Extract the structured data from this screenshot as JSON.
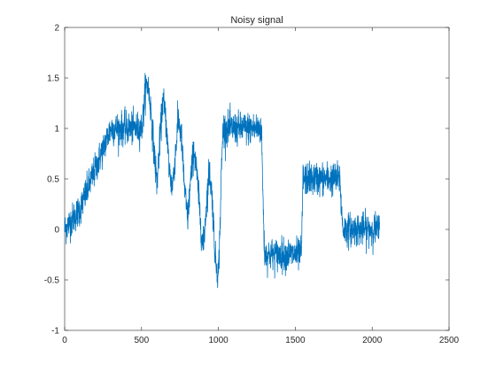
{
  "chart_data": {
    "type": "line",
    "title": "Noisy signal",
    "xlabel": "",
    "ylabel": "",
    "xlim": [
      0,
      2500
    ],
    "ylim": [
      -1,
      2
    ],
    "xticks": [
      0,
      500,
      1000,
      1500,
      2000,
      2500
    ],
    "yticks": [
      -1,
      -0.5,
      0,
      0.5,
      1,
      1.5,
      2
    ],
    "xtick_labels": [
      "0",
      "500",
      "1000",
      "1500",
      "2000",
      "2500"
    ],
    "ytick_labels": [
      "-1",
      "-0.5",
      "0",
      "0.5",
      "1",
      "1.5",
      "2"
    ],
    "grid": false,
    "line_color": "#0072BD",
    "series": [
      {
        "x": [
          0,
          50,
          100,
          150,
          200,
          250,
          300,
          350,
          400,
          450,
          500,
          510,
          525,
          540,
          560,
          580,
          600,
          620,
          640,
          660,
          680,
          700,
          720,
          740,
          760,
          780,
          800,
          820,
          840,
          860,
          880,
          900,
          920,
          940,
          960,
          980,
          1000,
          1010,
          1020,
          1030,
          1100,
          1200,
          1280,
          1290,
          1300,
          1400,
          1500,
          1540,
          1550,
          1600,
          1700,
          1790,
          1800,
          1810,
          1900,
          2000,
          2048
        ],
        "y": [
          0,
          0.1,
          0.2,
          0.4,
          0.6,
          0.8,
          1.0,
          1.0,
          1.0,
          1.0,
          1.0,
          1.1,
          1.4,
          1.45,
          1.2,
          0.8,
          0.45,
          0.9,
          1.3,
          1.05,
          0.6,
          0.4,
          0.75,
          1.1,
          0.9,
          0.4,
          0.1,
          0.5,
          0.8,
          0.55,
          0.15,
          -0.2,
          0.2,
          0.6,
          0.3,
          -0.3,
          -0.45,
          0.0,
          0.6,
          1.0,
          1.0,
          1.0,
          1.0,
          0.3,
          -0.25,
          -0.25,
          -0.25,
          -0.25,
          0.5,
          0.5,
          0.5,
          0.5,
          0.2,
          0.0,
          0.0,
          0.0,
          0.0
        ],
        "noise_amplitude": 0.08
      }
    ]
  }
}
